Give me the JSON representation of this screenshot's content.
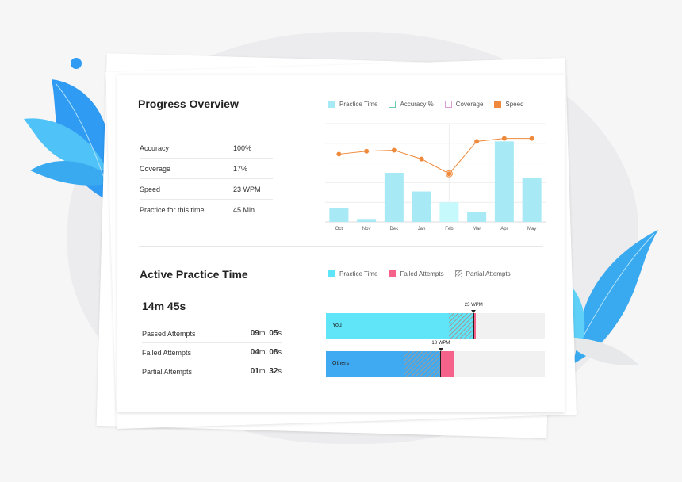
{
  "progress": {
    "title": "Progress Overview",
    "legend": [
      {
        "label": "Practice Time",
        "color": "#a8e9f6",
        "style": "fill"
      },
      {
        "label": "Accuracy %",
        "color": "#6fc9b0",
        "style": "outline"
      },
      {
        "label": "Coverage",
        "color": "#d99ad6",
        "style": "outline"
      },
      {
        "label": "Speed",
        "color": "#ef8a3c",
        "style": "fill"
      }
    ],
    "stats": [
      {
        "label": "Accuracy",
        "value": "100%"
      },
      {
        "label": "Coverage",
        "value": "17%"
      },
      {
        "label": "Speed",
        "value": "23 WPM"
      },
      {
        "label": "Practice for this time",
        "value": "45 Min"
      }
    ]
  },
  "chart_data": {
    "type": "bar",
    "categories": [
      "Oct",
      "Nov",
      "Dec",
      "Jan",
      "Feb",
      "Mar",
      "Apr",
      "May"
    ],
    "series": [
      {
        "name": "Practice Time",
        "values": [
          14,
          3,
          50,
          31,
          20,
          10,
          82,
          45
        ]
      },
      {
        "name": "Speed",
        "values": [
          69,
          72,
          73,
          64,
          49,
          82,
          85,
          85
        ]
      }
    ],
    "highlight_index": 4,
    "bar_color": "#a8e9f6",
    "highlight_color": "#c6f9fb",
    "line_color": "#ef8a3c",
    "ylim": [
      0,
      100
    ],
    "grid": true
  },
  "active": {
    "title": "Active Practice Time",
    "total": "14m 45s",
    "legend": [
      {
        "label": "Practice Time",
        "color": "#5fe4f8",
        "style": "fill"
      },
      {
        "label": "Failed Attempts",
        "color": "#f5628a",
        "style": "fill"
      },
      {
        "label": "Partial Attempts",
        "color": "#9a9a9a",
        "style": "hatch"
      }
    ],
    "attempts": [
      {
        "label": "Passed Attempts",
        "min": "09",
        "m": "m",
        "sec": "05",
        "s": "s"
      },
      {
        "label": "Failed Attempts",
        "min": "04",
        "m": "m",
        "sec": "08",
        "s": "s"
      },
      {
        "label": "Partial Attempts",
        "min": "01",
        "m": "m",
        "sec": "32",
        "s": "s"
      }
    ],
    "bars": [
      {
        "label": "You",
        "wpm": "23 WPM",
        "practice": 0.56,
        "partial": 0.115,
        "failed": 0.008,
        "color": "#5fe4f8",
        "failed_color": "#f5628a"
      },
      {
        "label": "Others",
        "wpm": "18 WPM",
        "practice": 0.36,
        "partial": 0.165,
        "failed": 0.06,
        "color": "#3faaf2",
        "failed_color": "#f5628a"
      }
    ]
  }
}
